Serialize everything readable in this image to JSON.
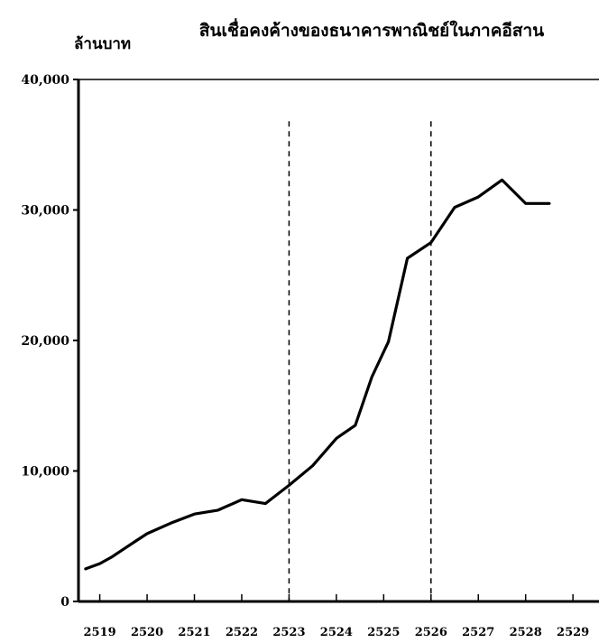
{
  "chart_data": {
    "type": "line",
    "title": "สินเชื่อคงค้างของธนาคารพาณิชย์ในภาคอีสาน",
    "ylabel": "ล้านบาท",
    "xlabel": "",
    "yticks": [
      0,
      10000,
      20000,
      30000,
      40000
    ],
    "ytick_labels": [
      "0",
      "10,000",
      "20,000",
      "30,000",
      "40,000"
    ],
    "ylim": [
      0,
      40000
    ],
    "xticks": [
      2519,
      2520,
      2521,
      2522,
      2523,
      2524,
      2525,
      2526,
      2527,
      2528,
      2529
    ],
    "xtick_labels": [
      "2519",
      "2520",
      "2521",
      "2522",
      "2523",
      "2524",
      "2525",
      "2526",
      "2527",
      "2528",
      "2529"
    ],
    "xlim": [
      2518.55,
      2529.55
    ],
    "vlines": [
      2523,
      2526
    ],
    "grid": false,
    "series": [
      {
        "x": [
          2518.7,
          2519.0,
          2519.25,
          2519.5,
          2519.75,
          2520.0,
          2520.5,
          2521.0,
          2521.5,
          2522.0,
          2522.5,
          2523.0,
          2523.5,
          2524.0,
          2524.4,
          2524.75,
          2525.1,
          2525.5,
          2526.0,
          2526.5,
          2527.0,
          2527.5,
          2528.0,
          2528.5
        ],
        "values": [
          2500,
          2900,
          3400,
          4000,
          4600,
          5200,
          6000,
          6700,
          7000,
          7800,
          7500,
          8900,
          10400,
          12500,
          13500,
          17200,
          19900,
          26300,
          27500,
          30200,
          31000,
          32300,
          30500,
          30500
        ],
        "color": "#000000"
      }
    ]
  }
}
